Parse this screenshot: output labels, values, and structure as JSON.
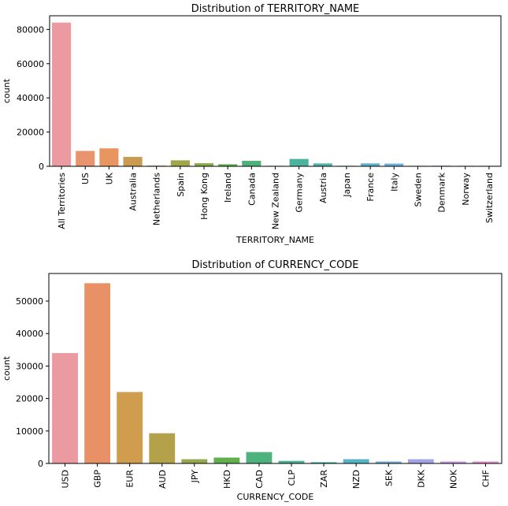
{
  "chart_data": [
    {
      "type": "bar",
      "title": "Distribution of TERRITORY_NAME",
      "xlabel": "TERRITORY_NAME",
      "ylabel": "count",
      "ylim": [
        0,
        88000
      ],
      "yticks": [
        0,
        20000,
        40000,
        60000,
        80000
      ],
      "categories": [
        "All Territories",
        "US",
        "UK",
        "Australia",
        "Netherlands",
        "Spain",
        "Hong Kong",
        "Ireland",
        "Canada",
        "New Zealand",
        "Germany",
        "Austria",
        "Japan",
        "France",
        "Italy",
        "Sweden",
        "Denmark",
        "Norway",
        "Switzerland"
      ],
      "values": [
        84000,
        9000,
        10500,
        5500,
        400,
        3500,
        1800,
        1200,
        3200,
        300,
        4300,
        1700,
        300,
        1700,
        1600,
        300,
        400,
        300,
        300
      ],
      "colors": [
        "#ec9aa2",
        "#e8946f",
        "#e89560",
        "#c99a50",
        "#b49d4d",
        "#9ea648",
        "#86ad48",
        "#5bb24c",
        "#4db27a",
        "#4cb390",
        "#4cb39e",
        "#4db5ad",
        "#52b5bc",
        "#57b3cb",
        "#6ab0dc",
        "#98a8e8",
        "#b99ee8",
        "#d992e2",
        "#e88fcf"
      ],
      "grid": false
    },
    {
      "type": "bar",
      "title": "Distribution of CURRENCY_CODE",
      "xlabel": "CURRENCY_CODE",
      "ylabel": "count",
      "ylim": [
        0,
        58500
      ],
      "yticks": [
        0,
        10000,
        20000,
        30000,
        40000,
        50000
      ],
      "categories": [
        "USD",
        "GBP",
        "EUR",
        "AUD",
        "JPY",
        "HKD",
        "CAD",
        "CLP",
        "ZAR",
        "NZD",
        "SEK",
        "DKK",
        "NOK",
        "CHF"
      ],
      "values": [
        34000,
        55500,
        22000,
        9300,
        1300,
        1800,
        3500,
        800,
        400,
        1300,
        600,
        1300,
        600,
        600
      ],
      "colors": [
        "#ec9aa2",
        "#e89166",
        "#d09c4e",
        "#b4a24b",
        "#95a84b",
        "#62b04d",
        "#4db27e",
        "#4db39a",
        "#4fb4b0",
        "#55b3c6",
        "#70add9",
        "#a3a3e6",
        "#cf98e3",
        "#e690cc"
      ],
      "grid": false
    }
  ]
}
